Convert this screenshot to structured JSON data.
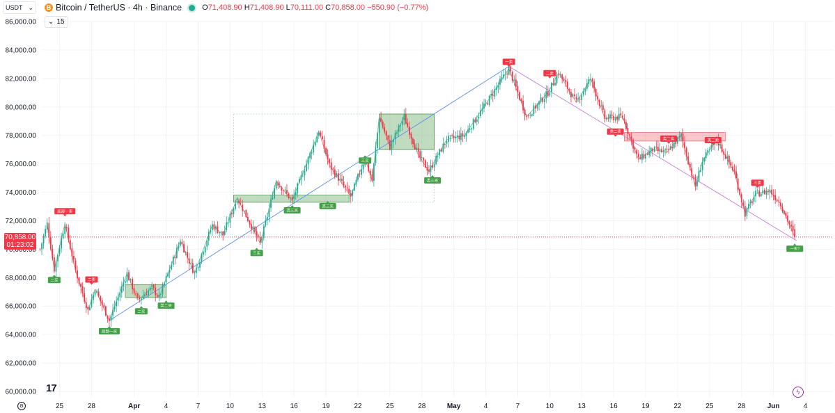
{
  "header": {
    "symbol_selector": "USDT",
    "symbol_icon": "B",
    "title": "Bitcoin / TetherUS · 4h · Binance",
    "ohlc": [
      {
        "k": "O",
        "v": "71,408.90"
      },
      {
        "k": "H",
        "v": "71,408.90"
      },
      {
        "k": "L",
        "v": "70,111.00"
      },
      {
        "k": "C",
        "v": "70,858.00"
      },
      {
        "k": "",
        "v": "−550.90 (−0.77%)"
      }
    ]
  },
  "indicator_value": "15",
  "last_price": {
    "price": "70,858.00",
    "countdown": "01:23:02",
    "value": 70858
  },
  "colors": {
    "up": "#22ab94",
    "down": "#f23645",
    "grid": "#f0f3fa",
    "fib_line": "#5b8ef0",
    "down_trend_line": "#c77ddb"
  },
  "chart_data": {
    "type": "candlestick",
    "timeframe": "4h",
    "ylim": [
      60000,
      86000
    ],
    "y_ticks": [
      "86,000.00",
      "84,000.00",
      "82,000.00",
      "80,000.00",
      "78,000.00",
      "76,000.00",
      "74,000.00",
      "72,000.00",
      "70,000.00",
      "68,000.00",
      "66,000.00",
      "64,000.00",
      "62,000.00",
      "60,000.00"
    ],
    "x_ticks": [
      {
        "label": "25",
        "i": 11
      },
      {
        "label": "28",
        "i": 29
      },
      {
        "label": "Apr",
        "i": 53,
        "bold": true
      },
      {
        "label": "4",
        "i": 71
      },
      {
        "label": "7",
        "i": 89
      },
      {
        "label": "10",
        "i": 107
      },
      {
        "label": "13",
        "i": 125
      },
      {
        "label": "16",
        "i": 143
      },
      {
        "label": "19",
        "i": 161
      },
      {
        "label": "22",
        "i": 179
      },
      {
        "label": "25",
        "i": 197
      },
      {
        "label": "28",
        "i": 215
      },
      {
        "label": "May",
        "i": 233,
        "bold": true
      },
      {
        "label": "4",
        "i": 251
      },
      {
        "label": "7",
        "i": 269
      },
      {
        "label": "10",
        "i": 287
      },
      {
        "label": "13",
        "i": 305
      },
      {
        "label": "16",
        "i": 323
      },
      {
        "label": "19",
        "i": 341
      },
      {
        "label": "22",
        "i": 359
      },
      {
        "label": "25",
        "i": 377
      },
      {
        "label": "28",
        "i": 395
      },
      {
        "label": "Jun",
        "i": 413,
        "bold": true
      },
      {
        "label": "4",
        "i": 431
      }
    ],
    "pivots": [
      [
        0,
        70000
      ],
      [
        4,
        71800
      ],
      [
        8,
        68600
      ],
      [
        14,
        71800
      ],
      [
        20,
        68500
      ],
      [
        27,
        65700
      ],
      [
        31,
        67200
      ],
      [
        39,
        65000
      ],
      [
        49,
        68300
      ],
      [
        55,
        66400
      ],
      [
        63,
        67300
      ],
      [
        67,
        66600
      ],
      [
        79,
        70600
      ],
      [
        87,
        68300
      ],
      [
        97,
        71700
      ],
      [
        103,
        71000
      ],
      [
        111,
        73600
      ],
      [
        124,
        70400
      ],
      [
        133,
        74800
      ],
      [
        142,
        73400
      ],
      [
        157,
        78300
      ],
      [
        163,
        75900
      ],
      [
        175,
        73700
      ],
      [
        183,
        76400
      ],
      [
        187,
        74800
      ],
      [
        191,
        79300
      ],
      [
        197,
        77200
      ],
      [
        205,
        79300
      ],
      [
        213,
        76600
      ],
      [
        219,
        75500
      ],
      [
        229,
        77700
      ],
      [
        239,
        78000
      ],
      [
        251,
        80200
      ],
      [
        264,
        82700
      ],
      [
        274,
        79300
      ],
      [
        286,
        81000
      ],
      [
        292,
        82400
      ],
      [
        302,
        80300
      ],
      [
        310,
        82000
      ],
      [
        318,
        79200
      ],
      [
        328,
        79300
      ],
      [
        337,
        76300
      ],
      [
        345,
        77000
      ],
      [
        353,
        76800
      ],
      [
        361,
        78000
      ],
      [
        369,
        74400
      ],
      [
        373,
        76200
      ],
      [
        381,
        77700
      ],
      [
        391,
        75400
      ],
      [
        397,
        72500
      ],
      [
        403,
        73900
      ],
      [
        411,
        74100
      ],
      [
        417,
        73200
      ],
      [
        425,
        70858
      ]
    ],
    "last_close": 70858,
    "zones": [
      {
        "type": "demand",
        "i0": 48,
        "i1": 71,
        "top": 67500,
        "bottom": 66600
      },
      {
        "type": "demand",
        "i0": 109,
        "i1": 174,
        "top": 73800,
        "bottom": 73300
      },
      {
        "type": "demand",
        "i0": 191,
        "i1": 222,
        "top": 79500,
        "bottom": 77000
      },
      {
        "type": "supply",
        "i0": 329,
        "i1": 386,
        "top": 78200,
        "bottom": 77600
      }
    ],
    "outline_box": {
      "i0": 109,
      "i1": 222,
      "top": 79500,
      "bottom": 73300
    },
    "trend_lines": [
      {
        "i0": 39,
        "y0": 64980,
        "i1": 264,
        "y1": 82850,
        "color": "blue"
      },
      {
        "i0": 264,
        "y0": 82850,
        "i1": 426,
        "y1": 70600,
        "color": "purple"
      }
    ],
    "signals": [
      {
        "text": "底部一卖",
        "i": 14,
        "price": 72400,
        "kind": "sell"
      },
      {
        "text": "二卖",
        "i": 29,
        "price": 67600,
        "kind": "sell"
      },
      {
        "text": "一卖",
        "i": 264,
        "price": 82900,
        "kind": "sell"
      },
      {
        "text": "二卖",
        "i": 287,
        "price": 82100,
        "kind": "sell"
      },
      {
        "text": "类二卖",
        "i": 324,
        "price": 78000,
        "kind": "sell"
      },
      {
        "text": "类二卖",
        "i": 354,
        "price": 77500,
        "kind": "sell"
      },
      {
        "text": "类二卖",
        "i": 379,
        "price": 77400,
        "kind": "sell"
      },
      {
        "text": "三卖",
        "i": 404,
        "price": 74400,
        "kind": "sell"
      },
      {
        "text": "二买",
        "i": 8,
        "price": 68100,
        "kind": "buy"
      },
      {
        "text": "底部一买",
        "i": 39,
        "price": 64500,
        "kind": "buy"
      },
      {
        "text": "二买",
        "i": 57,
        "price": 65900,
        "kind": "buy"
      },
      {
        "text": "类二买",
        "i": 71,
        "price": 66300,
        "kind": "buy"
      },
      {
        "text": "三买",
        "i": 122,
        "price": 70000,
        "kind": "buy"
      },
      {
        "text": "类三买",
        "i": 142,
        "price": 73000,
        "kind": "buy"
      },
      {
        "text": "类三买",
        "i": 162,
        "price": 73300,
        "kind": "buy"
      },
      {
        "text": "三买",
        "i": 183,
        "price": 76500,
        "kind": "buy"
      },
      {
        "text": "类三买",
        "i": 221,
        "price": 75100,
        "kind": "buy"
      },
      {
        "text": "一买?",
        "i": 425,
        "price": 70300,
        "kind": "buy"
      }
    ]
  },
  "icons": {
    "tv_logo": "tradingview-logo-icon",
    "bolt": "lightning-icon",
    "settings": "gear-icon"
  }
}
